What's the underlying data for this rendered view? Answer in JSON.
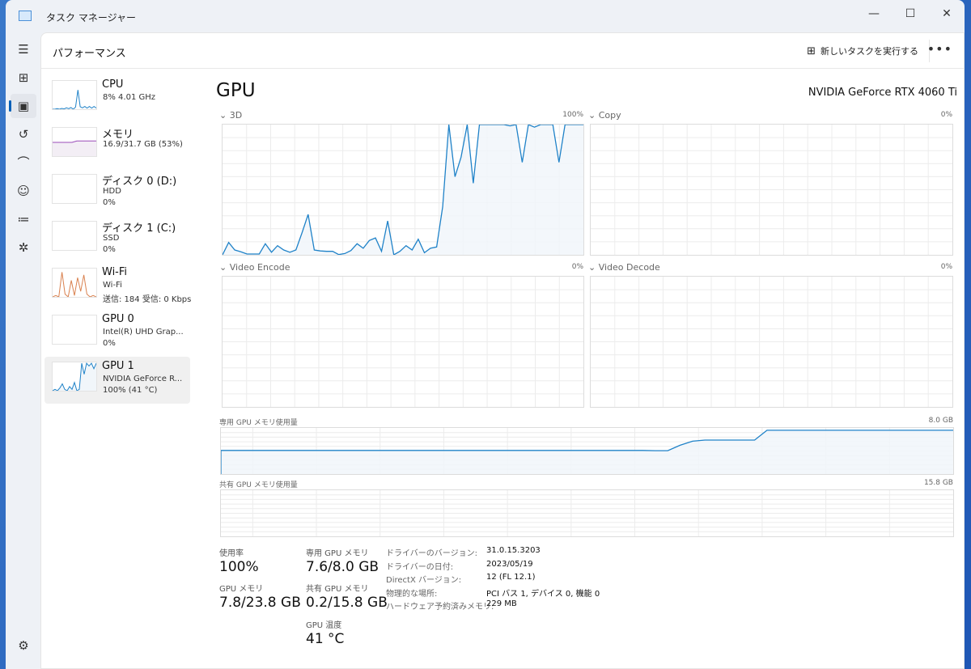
{
  "window": {
    "title": "タスク マネージャー",
    "minimize": "—",
    "maximize": "☐",
    "close": "✕"
  },
  "rail": [
    "menu-icon",
    "processes-icon",
    "performance-icon",
    "app-history-icon",
    "startup-icon",
    "users-icon",
    "details-icon",
    "services-icon",
    "settings-icon"
  ],
  "header": {
    "title": "パフォーマンス",
    "run_task": "新しいタスクを実行する",
    "more": "•••"
  },
  "sidebar": [
    {
      "name": "CPU",
      "line1": "8%  4.01 GHz",
      "line2": ""
    },
    {
      "name": "メモリ",
      "line1": "16.9/31.7 GB (53%)",
      "line2": ""
    },
    {
      "name": "ディスク 0 (D:)",
      "line1": "HDD",
      "line2": "0%"
    },
    {
      "name": "ディスク 1 (C:)",
      "line1": "SSD",
      "line2": "0%"
    },
    {
      "name": "Wi-Fi",
      "line1": "Wi-Fi",
      "line2": "送信: 184 受信: 0 Kbps"
    },
    {
      "name": "GPU 0",
      "line1": "Intel(R) UHD Grap...",
      "line2": "0%"
    },
    {
      "name": "GPU 1",
      "line1": "NVIDIA GeForce R...",
      "line2": "100%  (41 °C)",
      "selected": true
    }
  ],
  "colors": {
    "gpu_line": "#1f82c8",
    "gpu_fill": "#f1f6fa",
    "memory": "#9b4cba",
    "wifi": "#d9814f",
    "grid": "#ececec"
  },
  "main": {
    "title": "GPU",
    "device": "NVIDIA GeForce RTX 4060 Ti",
    "engines": [
      {
        "label": "3D",
        "max": "100%"
      },
      {
        "label": "Copy",
        "max": "0%"
      },
      {
        "label": "Video Encode",
        "max": "0%"
      },
      {
        "label": "Video Decode",
        "max": "0%"
      }
    ],
    "dedicated": {
      "label": "専用 GPU メモリ使用量",
      "max": "8.0 GB"
    },
    "shared": {
      "label": "共有 GPU メモリ使用量",
      "max": "15.8 GB"
    },
    "stats": [
      {
        "label": "使用率",
        "value": "100%"
      },
      {
        "label": "専用 GPU メモリ",
        "value": "7.6/8.0 GB"
      },
      {
        "label": "GPU メモリ",
        "value": "7.8/23.8 GB"
      },
      {
        "label": "共有 GPU メモリ",
        "value": "0.2/15.8 GB"
      },
      {
        "label": "GPU 温度",
        "value": "41 °C"
      }
    ],
    "details": [
      {
        "label": "ドライバーのバージョン:",
        "value": "31.0.15.3203"
      },
      {
        "label": "ドライバーの日付:",
        "value": "2023/05/19"
      },
      {
        "label": "DirectX バージョン:",
        "value": "12 (FL 12.1)"
      },
      {
        "label": "物理的な場所:",
        "value": "PCI バス 1, デバイス 0, 機能 0"
      },
      {
        "label": "ハードウェア予約済みメモリ:",
        "value": "229 MB"
      }
    ]
  },
  "chart_data": [
    {
      "type": "area",
      "name": "3D",
      "unit": "%",
      "ylim": [
        0,
        100
      ],
      "values": [
        0,
        9.5,
        3.7,
        2.3,
        0.6,
        0.6,
        0.6,
        8.5,
        2,
        7,
        3.7,
        2,
        3.7,
        17,
        31,
        3.7,
        3,
        2.7,
        2.7,
        0.2,
        1,
        3.3,
        8.5,
        5,
        11,
        13,
        2.7,
        26,
        0,
        2.7,
        7,
        3.7,
        12,
        1.6,
        5,
        6,
        37,
        100,
        60,
        75,
        100,
        55,
        100,
        100,
        100,
        100,
        100,
        99,
        100,
        71,
        100,
        98,
        100,
        100,
        100,
        71,
        100,
        100,
        100,
        100
      ]
    },
    {
      "type": "area",
      "name": "Copy",
      "unit": "%",
      "ylim": [
        0,
        100
      ],
      "values": []
    },
    {
      "type": "area",
      "name": "Video Encode",
      "unit": "%",
      "ylim": [
        0,
        100
      ],
      "values": []
    },
    {
      "type": "area",
      "name": "Video Decode",
      "unit": "%",
      "ylim": [
        0,
        100
      ],
      "values": []
    },
    {
      "type": "area",
      "name": "専用 GPU メモリ使用量",
      "unit": "GB",
      "ylim": [
        0,
        8.0
      ],
      "values": [
        4.1,
        4.1,
        4.1,
        4.1,
        4.1,
        4.1,
        4.1,
        4.1,
        4.1,
        4.1,
        4.1,
        4.1,
        4.1,
        4.1,
        4.1,
        4.1,
        4.1,
        4.1,
        4.1,
        4.1,
        4.1,
        4.1,
        4.1,
        4.1,
        4.1,
        4.1,
        4.1,
        4.1,
        4.1,
        4.1,
        4.1,
        4.1,
        4.1,
        4.1,
        4.1,
        4.05,
        4.05,
        5.0,
        5.7,
        5.9,
        5.9,
        5.9,
        5.9,
        5.9,
        7.6,
        7.6,
        7.6,
        7.6,
        7.6,
        7.6,
        7.6,
        7.6,
        7.6,
        7.6,
        7.6,
        7.6,
        7.6,
        7.6,
        7.6,
        7.6
      ]
    },
    {
      "type": "area",
      "name": "共有 GPU メモリ使用量",
      "unit": "GB",
      "ylim": [
        0,
        15.8
      ],
      "values": []
    }
  ]
}
